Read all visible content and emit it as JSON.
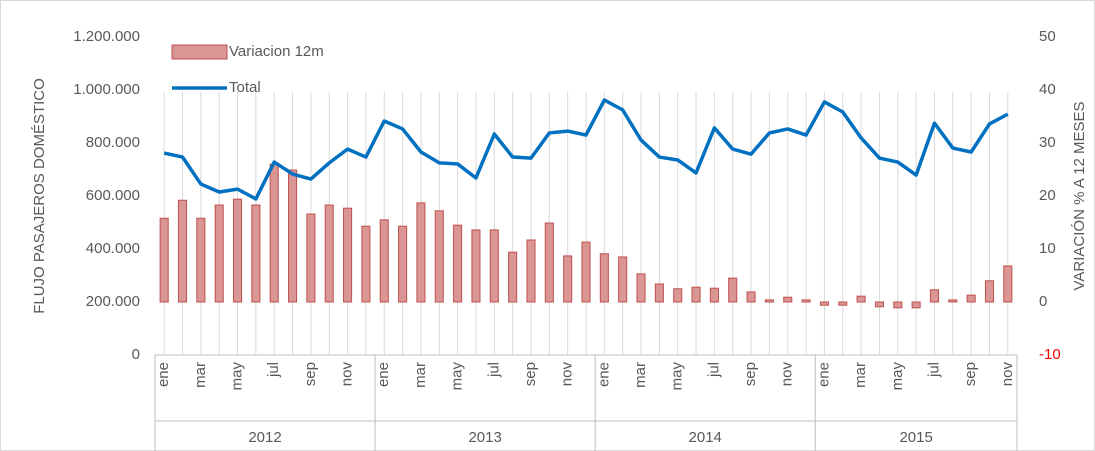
{
  "chart_data": {
    "type": "bar-line",
    "y_label": "FLUJO PASAJEROS DOMÉSTICO",
    "y2_label": "VARIACIÓN % A 12 MESES",
    "categories": [
      "ene",
      null,
      "mar",
      null,
      "may",
      null,
      "jul",
      null,
      "sep",
      null,
      "nov",
      null,
      "ene",
      null,
      "mar",
      null,
      "may",
      null,
      "jul",
      null,
      "sep",
      null,
      "nov",
      null,
      "ene",
      null,
      "mar",
      null,
      "may",
      null,
      "jul",
      null,
      "sep",
      null,
      "nov",
      null,
      "ene",
      null,
      "mar",
      null,
      "may",
      null,
      "jul",
      null,
      "sep",
      null,
      "nov"
    ],
    "groups": [
      "2012",
      "2013",
      "2014",
      "2015"
    ],
    "series": [
      {
        "name": "Variacion 12m",
        "type": "bar",
        "axis": "y2",
        "color": "#d99694",
        "edge_color": "#c0504d",
        "values": [
          15.8,
          19.2,
          15.8,
          18.3,
          19.4,
          18.3,
          26,
          24.9,
          16.6,
          18.3,
          17.7,
          14.3,
          15.5,
          14.3,
          18.7,
          17.2,
          14.5,
          13.6,
          13.6,
          9.4,
          11.7,
          14.9,
          8.7,
          11.3,
          9.1,
          8.5,
          5.3,
          3.4,
          2.5,
          2.8,
          2.6,
          4.5,
          1.9,
          0.4,
          0.9,
          0.4,
          -0.6,
          -0.6,
          1.1,
          -0.9,
          -1.1,
          -1.1,
          2.3,
          0.4,
          1.3,
          4.0,
          6.8
        ]
      },
      {
        "name": "Total",
        "type": "line",
        "axis": "y",
        "color": "#0070c0",
        "values": [
          762000,
          747000,
          645000,
          615000,
          626000,
          589000,
          728000,
          683000,
          664000,
          725000,
          777000,
          747000,
          883000,
          853000,
          766000,
          725000,
          721000,
          668000,
          834000,
          747000,
          743000,
          838000,
          845000,
          830000,
          962000,
          925000,
          811000,
          747000,
          736000,
          687000,
          857000,
          777000,
          758000,
          838000,
          853000,
          830000,
          955000,
          917000,
          819000,
          743000,
          728000,
          679000,
          875000,
          781000,
          766000,
          872000,
          909000
        ]
      }
    ],
    "ylim": [
      0,
      1200000
    ],
    "yticks": [
      0,
      {
        "value": 200000,
        "label": "200.000"
      },
      {
        "value": 400000,
        "label": "400.000"
      },
      {
        "value": 600000,
        "label": "600.000"
      },
      {
        "value": 800000,
        "label": "800.000"
      },
      {
        "value": 1000000,
        "label": "1.000.000"
      },
      {
        "value": 1200000,
        "label": "1.200.000"
      }
    ],
    "y2lim": [
      -10,
      50
    ],
    "y2ticks": [
      -10,
      0,
      10,
      20,
      30,
      40,
      50
    ],
    "negative_tick_color": "#ff0000",
    "grid": "vertical",
    "legend": "top-left"
  }
}
